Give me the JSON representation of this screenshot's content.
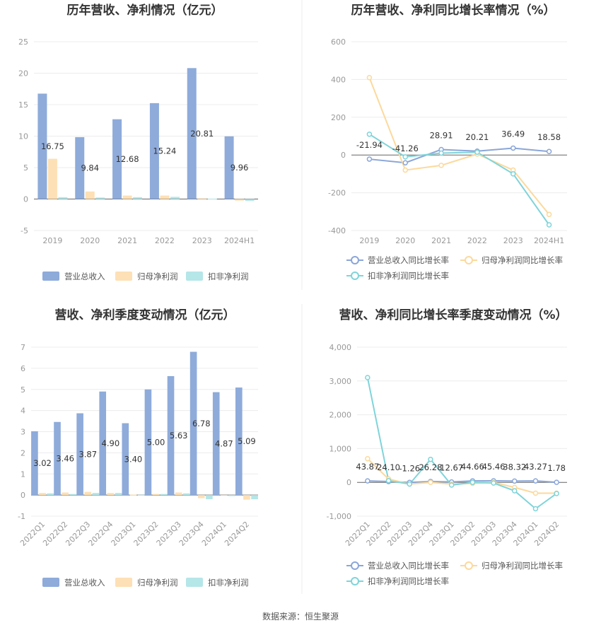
{
  "colors": {
    "revenue": "#8eabda",
    "net_profit": "#fde0b5",
    "deducted_profit": "#b5e6e8",
    "revenue_line": "#8aa6d8",
    "net_profit_line": "#fcd99c",
    "deducted_line": "#7fd4d9"
  },
  "source_text": "数据来源：恒生聚源",
  "chart_data": [
    {
      "id": "annual_amount",
      "type": "bar",
      "title": "历年营收、净利情况（亿元）",
      "categories": [
        "2019",
        "2020",
        "2021",
        "2022",
        "2023",
        "2024H1"
      ],
      "ylim": [
        -5,
        25
      ],
      "yticks": [
        -5,
        0,
        5,
        10,
        15,
        20,
        25
      ],
      "grid": true,
      "legend": "bottom",
      "series": [
        {
          "name": "营业总收入",
          "values": [
            16.75,
            9.84,
            12.68,
            15.24,
            20.81,
            9.96
          ],
          "labels": [
            "16.75",
            "9.84",
            "12.68",
            "15.24",
            "20.81",
            "9.96"
          ]
        },
        {
          "name": "归母净利润",
          "values": [
            6.4,
            1.2,
            0.55,
            0.55,
            0.1,
            -0.25
          ]
        },
        {
          "name": "扣非净利润",
          "values": [
            0.3,
            0.25,
            0.3,
            0.35,
            0.05,
            -0.3
          ]
        }
      ]
    },
    {
      "id": "annual_growth",
      "type": "line",
      "title": "历年营收、净利同比增长率情况（%）",
      "categories": [
        "2019",
        "2020",
        "2021",
        "2022",
        "2023",
        "2024H1"
      ],
      "ylim": [
        -400,
        600
      ],
      "yticks": [
        -400,
        -200,
        0,
        200,
        400,
        600
      ],
      "grid": true,
      "legend": "bottom",
      "series": [
        {
          "name": "营业总收入同比增长率",
          "values": [
            -21.94,
            -41.26,
            28.91,
            20.21,
            36.49,
            18.58
          ],
          "labels": [
            "-21.94",
            "-41.26",
            "28.91",
            "20.21",
            "36.49",
            "18.58"
          ]
        },
        {
          "name": "归母净利润同比增长率",
          "values": [
            410,
            -80,
            -55,
            5,
            -80,
            -315
          ]
        },
        {
          "name": "扣非净利润同比增长率",
          "values": [
            110,
            -10,
            10,
            15,
            -100,
            -370
          ]
        }
      ]
    },
    {
      "id": "quarterly_amount",
      "type": "bar",
      "title": "营收、净利季度变动情况（亿元）",
      "categories": [
        "2022Q1",
        "2022Q2",
        "2022Q3",
        "2022Q4",
        "2023Q1",
        "2023Q2",
        "2023Q3",
        "2023Q4",
        "2024Q1",
        "2024Q2"
      ],
      "ylim": [
        -1,
        7
      ],
      "yticks": [
        -1,
        0,
        1,
        2,
        3,
        4,
        5,
        6,
        7
      ],
      "grid": true,
      "legend": "bottom",
      "series": [
        {
          "name": "营业总收入",
          "values": [
            3.02,
            3.46,
            3.87,
            4.9,
            3.4,
            5.0,
            5.63,
            6.78,
            4.87,
            5.09
          ],
          "labels": [
            "3.02",
            "3.46",
            "3.87",
            "4.90",
            "3.40",
            "5.00",
            "5.63",
            "6.78",
            "4.87",
            "5.09"
          ]
        },
        {
          "name": "归母净利润",
          "values": [
            0.1,
            0.12,
            0.15,
            0.1,
            0.02,
            0.05,
            0.12,
            -0.15,
            -0.03,
            -0.22
          ]
        },
        {
          "name": "扣非净利润",
          "values": [
            0.08,
            0.05,
            0.1,
            0.1,
            0.01,
            0.05,
            0.08,
            -0.2,
            -0.05,
            -0.2
          ]
        }
      ]
    },
    {
      "id": "quarterly_growth",
      "type": "line",
      "title": "营收、净利同比增长率季度变动情况（%）",
      "categories": [
        "2022Q1",
        "2022Q2",
        "2022Q3",
        "2022Q4",
        "2023Q1",
        "2023Q2",
        "2023Q3",
        "2023Q4",
        "2024Q1",
        "2024Q2"
      ],
      "ylim": [
        -1000,
        4000
      ],
      "yticks": [
        -1000,
        0,
        1000,
        2000,
        3000,
        4000
      ],
      "ytick_labels": [
        "-1,000",
        "0",
        "1,000",
        "2,000",
        "3,000",
        "4,000"
      ],
      "grid": true,
      "legend": "bottom",
      "series": [
        {
          "name": "营业总收入同比增长率",
          "values": [
            43.87,
            24.1,
            -1.26,
            26.28,
            12.67,
            44.66,
            45.46,
            38.32,
            43.27,
            1.78
          ],
          "labels": [
            "43.87",
            "24.10",
            "-1.26",
            "26.28",
            "12.67",
            "44.66",
            "45.46",
            "38.32",
            "43.27",
            "1.78"
          ]
        },
        {
          "name": "归母净利润同比增长率",
          "values": [
            700,
            100,
            -50,
            0,
            -50,
            -30,
            0,
            -150,
            -320,
            -320
          ]
        },
        {
          "name": "扣非净利润同比增长率",
          "values": [
            3100,
            50,
            -50,
            680,
            -80,
            0,
            -20,
            -250,
            -780,
            -330
          ]
        }
      ]
    }
  ]
}
